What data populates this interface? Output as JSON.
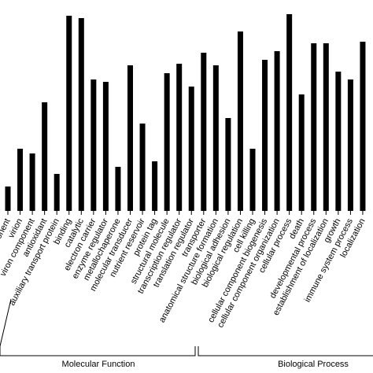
{
  "chart_data": {
    "type": "bar",
    "categories": [
      "component",
      "virion",
      "viron component",
      "antioxidant",
      "auxiliary transport protein",
      "binding",
      "catalytic",
      "electron carrier",
      "enzyme regulator",
      "metallochaperone",
      "molecular transducer",
      "nutrient reservoir",
      "protein tag",
      "structural molecule",
      "transcription regulator",
      "translation regulator",
      "transporter",
      "anatomical structure formation",
      "biological adhesion",
      "biological regulation",
      "cell killing",
      "cellular component biogenesis",
      "cellular component organization",
      "cellular process",
      "death",
      "developmental process",
      "establishment of localization",
      "growth",
      "immune system process",
      "localization"
    ],
    "values": [
      31,
      79,
      73,
      138,
      47,
      248,
      245,
      167,
      164,
      56,
      185,
      111,
      63,
      175,
      187,
      158,
      201,
      185,
      118,
      228,
      79,
      192,
      203,
      250,
      148,
      213,
      213,
      177,
      167,
      215
    ],
    "color": "#000000",
    "ylim": [
      0,
      250
    ],
    "groups": [
      "Molecular Function",
      "Biological Process"
    ]
  }
}
